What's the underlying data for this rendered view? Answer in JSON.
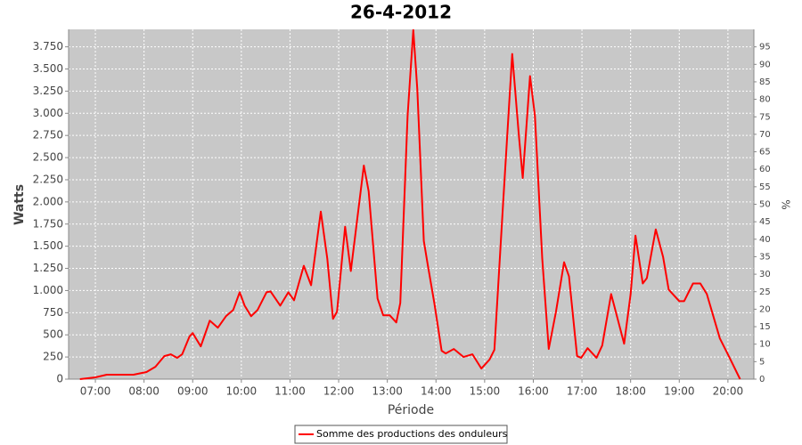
{
  "chart_data": {
    "type": "line",
    "title": "26-4-2012",
    "ylabel": "Watts",
    "y2label": "%",
    "xlabel": "Période",
    "x": [
      "06:41",
      "07:00",
      "07:14",
      "07:47",
      "08:03",
      "08:14",
      "08:25",
      "08:33",
      "08:41",
      "08:47",
      "08:56",
      "09:00",
      "09:10",
      "09:21",
      "09:31",
      "09:41",
      "09:50",
      "09:58",
      "10:04",
      "10:12",
      "10:20",
      "10:31",
      "10:36",
      "10:48",
      "10:58",
      "11:05",
      "11:17",
      "11:26",
      "11:38",
      "11:46",
      "11:53",
      "11:58",
      "12:08",
      "12:15",
      "12:31",
      "12:37",
      "12:48",
      "12:55",
      "13:03",
      "13:11",
      "13:16",
      "13:25",
      "13:32",
      "13:37",
      "13:45",
      "13:50",
      "13:58",
      "14:07",
      "14:12",
      "14:22",
      "14:34",
      "14:45",
      "14:56",
      "15:06",
      "15:12",
      "15:23",
      "15:34",
      "15:42",
      "15:47",
      "15:56",
      "16:02",
      "16:11",
      "16:19",
      "16:28",
      "16:38",
      "16:44",
      "16:54",
      "16:59",
      "17:07",
      "17:18",
      "17:25",
      "17:36",
      "17:44",
      "17:52",
      "18:00",
      "18:06",
      "18:15",
      "18:20",
      "18:31",
      "18:40",
      "18:47",
      "19:00",
      "19:06",
      "19:17",
      "19:26",
      "19:34",
      "19:42",
      "19:50",
      "20:01",
      "20:15"
    ],
    "series": [
      {
        "name": "Somme des productions des onduleurs",
        "color": "#ff0000",
        "values": [
          0,
          20,
          50,
          50,
          80,
          140,
          260,
          280,
          240,
          280,
          480,
          520,
          370,
          660,
          580,
          710,
          780,
          980,
          830,
          710,
          780,
          980,
          990,
          830,
          980,
          890,
          1280,
          1060,
          1890,
          1360,
          680,
          760,
          1720,
          1220,
          2410,
          2120,
          910,
          720,
          720,
          640,
          860,
          2970,
          3940,
          3270,
          1560,
          1280,
          860,
          320,
          290,
          340,
          250,
          280,
          120,
          220,
          330,
          2020,
          3670,
          2770,
          2270,
          3420,
          2970,
          1360,
          340,
          760,
          1320,
          1160,
          260,
          240,
          350,
          240,
          380,
          960,
          680,
          400,
          960,
          1620,
          1080,
          1140,
          1690,
          1380,
          1010,
          880,
          880,
          1080,
          1080,
          960,
          710,
          460,
          260,
          0
        ]
      }
    ],
    "xlim": [
      "06:27",
      "20:32"
    ],
    "xticks": [
      "07:00",
      "08:00",
      "09:00",
      "10:00",
      "11:00",
      "12:00",
      "13:00",
      "14:00",
      "15:00",
      "16:00",
      "17:00",
      "18:00",
      "19:00",
      "20:00"
    ],
    "ylim": [
      0,
      3947
    ],
    "yticks": [
      0,
      250,
      500,
      750,
      {
        "value": 1000,
        "label": "1.000"
      },
      {
        "value": 1250,
        "label": "1.250"
      },
      {
        "value": 1500,
        "label": "1.500"
      },
      {
        "value": 1750,
        "label": "1.750"
      },
      {
        "value": 2000,
        "label": "2.000"
      },
      {
        "value": 2250,
        "label": "2.250"
      },
      {
        "value": 2500,
        "label": "2.500"
      },
      {
        "value": 2750,
        "label": "2.750"
      },
      {
        "value": 3000,
        "label": "3.000"
      },
      {
        "value": 3250,
        "label": "3.250"
      },
      {
        "value": 3500,
        "label": "3.500"
      },
      {
        "value": 3750,
        "label": "3.750"
      }
    ],
    "y2lim": [
      0,
      100
    ],
    "y2ticks": [
      0,
      5,
      10,
      15,
      20,
      25,
      30,
      35,
      40,
      45,
      50,
      55,
      60,
      65,
      70,
      75,
      80,
      85,
      90,
      95
    ],
    "grid": true
  }
}
